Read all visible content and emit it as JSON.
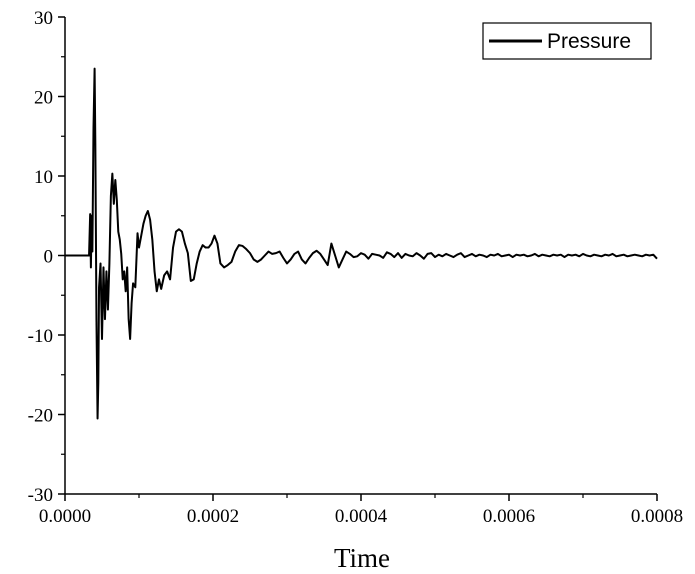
{
  "chart_data": {
    "type": "line",
    "title": "",
    "xlabel": "Time",
    "ylabel": "",
    "xlim": [
      0,
      0.0008
    ],
    "ylim": [
      -30,
      30
    ],
    "grid": false,
    "legend": "top-right",
    "x_ticks": [
      0,
      0.0002,
      0.0004,
      0.0006,
      0.0008
    ],
    "x_tick_labels": [
      "0.0000",
      "0.0002",
      "0.0004",
      "0.0006",
      "0.0008"
    ],
    "y_ticks": [
      -30,
      -20,
      -10,
      0,
      10,
      20,
      30
    ],
    "y_tick_labels": [
      "-30",
      "-20",
      "-10",
      "0",
      "10",
      "20",
      "30"
    ],
    "series": [
      {
        "name": "Pressure",
        "color": "#000000",
        "x": [
          0,
          3e-05,
          3.25e-05,
          3.4e-05,
          3.5e-05,
          3.6e-05,
          3.7e-05,
          3.85e-05,
          4e-05,
          4.1e-05,
          4.25e-05,
          4.4e-05,
          4.5e-05,
          4.6e-05,
          4.8e-05,
          5e-05,
          5.2e-05,
          5.4e-05,
          5.6e-05,
          5.8e-05,
          6e-05,
          6.2e-05,
          6.4e-05,
          6.6e-05,
          6.8e-05,
          7e-05,
          7.2e-05,
          7.4e-05,
          7.6e-05,
          7.8e-05,
          8e-05,
          8.2e-05,
          8.4e-05,
          8.6e-05,
          8.8e-05,
          9e-05,
          9.2e-05,
          9.5e-05,
          9.8e-05,
          0.0001,
          0.000103,
          0.000106,
          0.000109,
          0.000112,
          0.000115,
          0.000118,
          0.000121,
          0.000124,
          0.000127,
          0.00013,
          0.000134,
          0.000138,
          0.000142,
          0.000146,
          0.00015,
          0.000154,
          0.000158,
          0.000162,
          0.000166,
          0.00017,
          0.000174,
          0.000178,
          0.000182,
          0.000186,
          0.00019,
          0.000194,
          0.000198,
          0.000202,
          0.000206,
          0.00021,
          0.000215,
          0.00022,
          0.000225,
          0.00023,
          0.000235,
          0.00024,
          0.000245,
          0.00025,
          0.000255,
          0.00026,
          0.000265,
          0.00027,
          0.000275,
          0.00028,
          0.000285,
          0.00029,
          0.000295,
          0.0003,
          0.000305,
          0.00031,
          0.000315,
          0.00032,
          0.000325,
          0.00033,
          0.000335,
          0.00034,
          0.000345,
          0.00035,
          0.000355,
          0.00036,
          0.000365,
          0.00037,
          0.000375,
          0.00038,
          0.000385,
          0.00039,
          0.000395,
          0.0004,
          0.000405,
          0.00041,
          0.000415,
          0.00042,
          0.000425,
          0.00043,
          0.000435,
          0.00044,
          0.000445,
          0.00045,
          0.000455,
          0.00046,
          0.000465,
          0.00047,
          0.000475,
          0.00048,
          0.000485,
          0.00049,
          0.000495,
          0.0005,
          0.000505,
          0.00051,
          0.000515,
          0.00052,
          0.000525,
          0.00053,
          0.000535,
          0.00054,
          0.000545,
          0.00055,
          0.000555,
          0.00056,
          0.000565,
          0.00057,
          0.000575,
          0.00058,
          0.000585,
          0.00059,
          0.000595,
          0.0006,
          0.000605,
          0.00061,
          0.000615,
          0.00062,
          0.000625,
          0.00063,
          0.000635,
          0.00064,
          0.000645,
          0.00065,
          0.000655,
          0.00066,
          0.000665,
          0.00067,
          0.000675,
          0.00068,
          0.000685,
          0.00069,
          0.000695,
          0.0007,
          0.000705,
          0.00071,
          0.000715,
          0.00072,
          0.000725,
          0.00073,
          0.000735,
          0.00074,
          0.000745,
          0.00075,
          0.000755,
          0.00076,
          0.000765,
          0.00077,
          0.000775,
          0.00078,
          0.000785,
          0.00079,
          0.000795,
          0.0008
        ],
        "y": [
          0,
          0,
          0,
          5.2,
          -1.5,
          5.0,
          0.5,
          16.0,
          23.5,
          14.0,
          -8.0,
          -20.5,
          -16.0,
          -4.0,
          -1.0,
          -10.5,
          -1.5,
          -8.0,
          -2.0,
          -6.8,
          -1.0,
          7.5,
          10.3,
          6.5,
          9.5,
          7.0,
          3.0,
          2.0,
          0.2,
          -3.0,
          -2.0,
          -4.5,
          -1.5,
          -8.0,
          -10.5,
          -6.0,
          -3.5,
          -4.0,
          2.8,
          1.0,
          2.5,
          4.0,
          5.0,
          5.6,
          4.5,
          2.0,
          -2.0,
          -4.5,
          -3.0,
          -4.2,
          -2.5,
          -2.0,
          -3.0,
          1.0,
          3.0,
          3.3,
          3.0,
          1.5,
          0.3,
          -3.2,
          -3.0,
          -1.0,
          0.5,
          1.3,
          1.0,
          1.0,
          1.5,
          2.5,
          1.5,
          -1.0,
          -1.5,
          -1.2,
          -0.8,
          0.5,
          1.3,
          1.2,
          0.8,
          0.3,
          -0.5,
          -0.8,
          -0.5,
          0.0,
          0.5,
          0.2,
          0.3,
          0.5,
          -0.3,
          -1.0,
          -0.5,
          0.2,
          0.5,
          -0.5,
          -1.0,
          -0.3,
          0.3,
          0.6,
          0.2,
          -0.5,
          -1.2,
          1.5,
          0.0,
          -1.5,
          -0.5,
          0.5,
          0.2,
          -0.2,
          -0.1,
          0.3,
          0.1,
          -0.4,
          0.2,
          0.1,
          0.0,
          -0.3,
          0.4,
          0.2,
          -0.2,
          0.3,
          -0.3,
          0.2,
          0.0,
          -0.1,
          0.3,
          0.0,
          -0.4,
          0.2,
          0.3,
          -0.2,
          0.1,
          -0.1,
          0.2,
          0.0,
          -0.2,
          0.1,
          0.3,
          -0.2,
          0.0,
          0.2,
          -0.1,
          0.1,
          0.0,
          -0.2,
          0.1,
          0.0,
          0.2,
          -0.1,
          0.0,
          0.1,
          -0.2,
          0.1,
          0.0,
          0.1,
          -0.1,
          0.0,
          0.2,
          -0.1,
          0.1,
          0.0,
          -0.1,
          0.1,
          0.0,
          0.1,
          -0.2,
          0.1,
          0.0,
          0.1,
          -0.1,
          0.2,
          0.0,
          -0.1,
          0.1,
          0.0,
          -0.1,
          0.1,
          0.0,
          0.2,
          -0.1,
          0.0,
          0.1,
          -0.1,
          0.0,
          0.1,
          0.0,
          -0.1,
          0.1,
          0.0,
          0.1,
          -0.4
        ]
      }
    ]
  }
}
